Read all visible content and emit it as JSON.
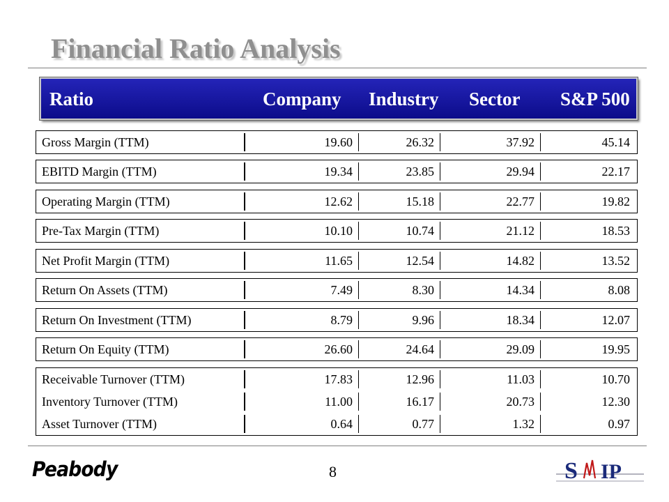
{
  "slide": {
    "title": "Financial Ratio Analysis",
    "page_number": "8"
  },
  "table": {
    "headers": [
      "Ratio",
      "Company",
      "Industry",
      "Sector",
      "S&P 500"
    ],
    "rows": [
      [
        "Gross Margin (TTM)",
        "19.60",
        "26.32",
        "37.92",
        "45.14"
      ],
      [
        "EBITD Margin (TTM)",
        "19.34",
        "23.85",
        "29.94",
        "22.17"
      ],
      [
        "Operating Margin (TTM)",
        "12.62",
        "15.18",
        "22.77",
        "19.82"
      ],
      [
        "Pre-Tax Margin (TTM)",
        "10.10",
        "10.74",
        "21.12",
        "18.53"
      ],
      [
        "Net Profit Margin (TTM)",
        "11.65",
        "12.54",
        "14.82",
        "13.52"
      ],
      [
        "Return On Assets (TTM)",
        "7.49",
        "8.30",
        "14.34",
        "8.08"
      ],
      [
        "Return On Investment (TTM)",
        "8.79",
        "9.96",
        "18.34",
        "12.07"
      ],
      [
        "Return On Equity (TTM)",
        "26.60",
        "24.64",
        "29.09",
        "19.95"
      ],
      [
        "Receivable Turnover (TTM)",
        "17.83",
        "12.96",
        "11.03",
        "10.70"
      ],
      [
        "Inventory Turnover (TTM)",
        "11.00",
        "16.17",
        "20.73",
        "12.30"
      ],
      [
        "Asset Turnover (TTM)",
        "0.64",
        "0.77",
        "1.32",
        "0.97"
      ]
    ]
  },
  "logos": {
    "left": "Peabody",
    "right_parts": [
      "S",
      "IP"
    ]
  },
  "colors": {
    "header_bg": "#1616a0",
    "title": "#8f8f8f"
  }
}
